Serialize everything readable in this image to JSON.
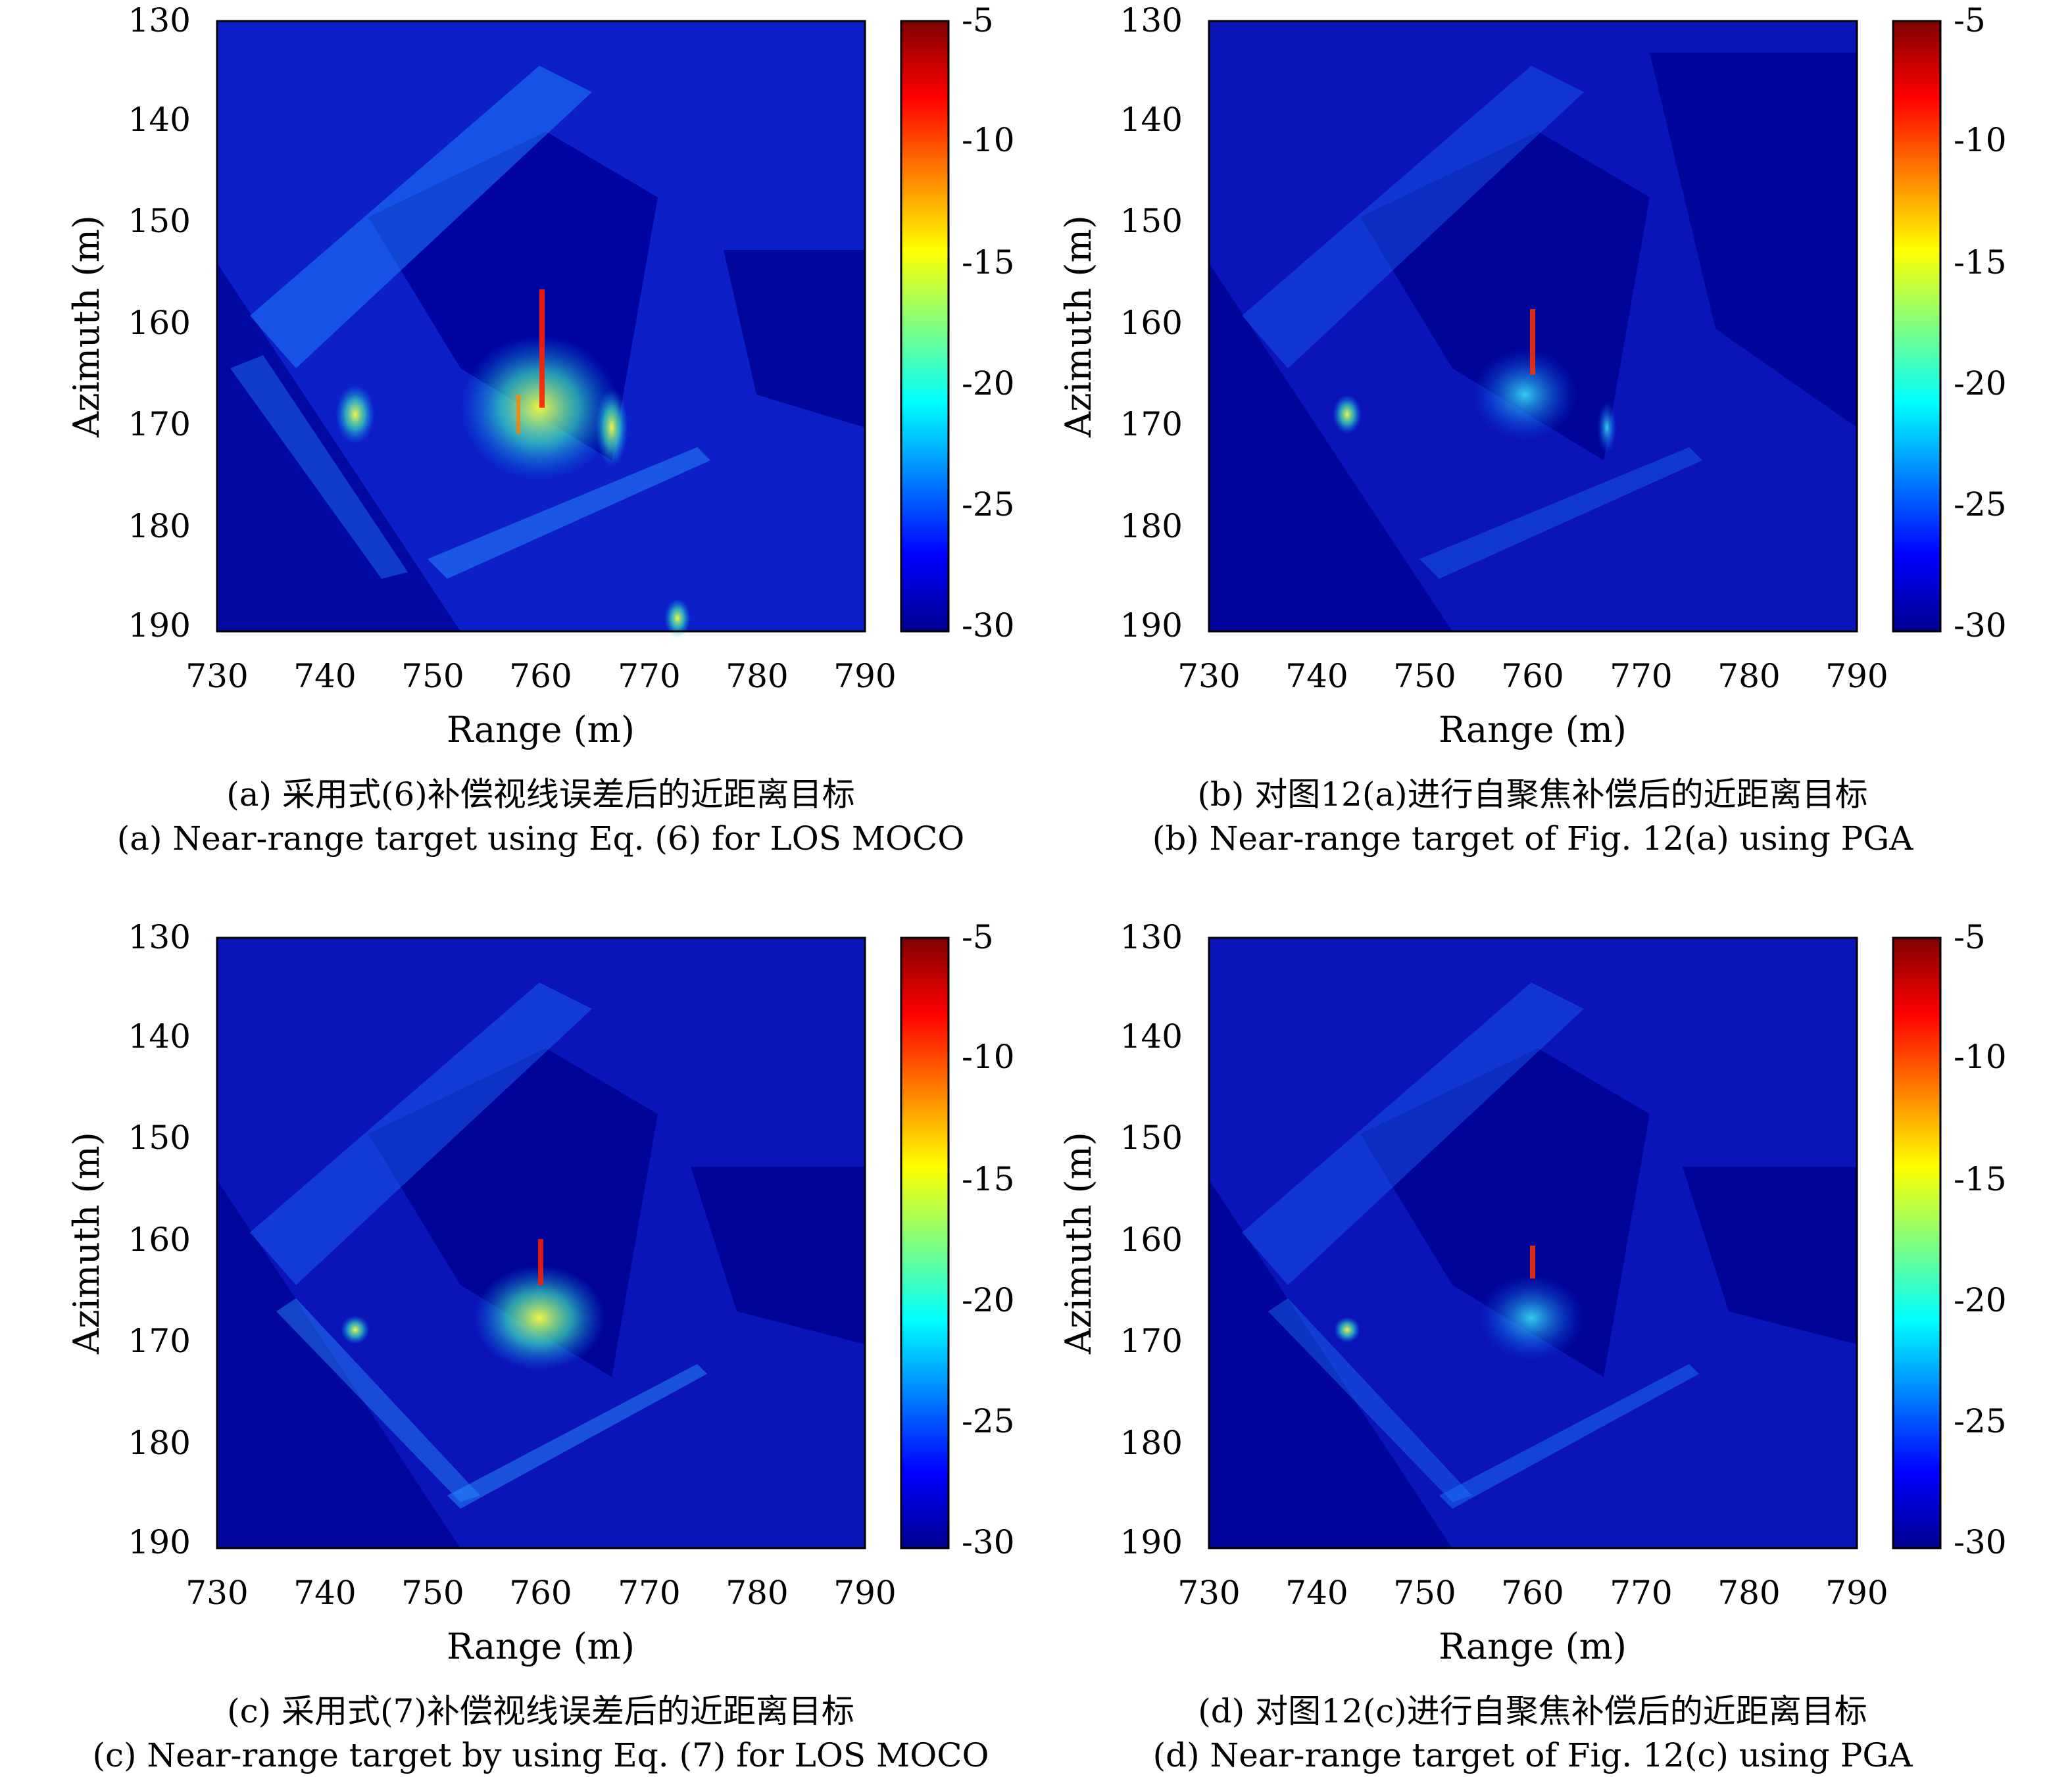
{
  "chart_data": [
    {
      "type": "heatmap",
      "xlabel": "Range (m)",
      "ylabel": "Azimuth (m)",
      "xlim": [
        730,
        790
      ],
      "ylim": [
        130,
        190
      ],
      "y_reversed": true,
      "xticks": [
        "730",
        "740",
        "750",
        "760",
        "770",
        "780",
        "790"
      ],
      "yticks": [
        "130",
        "140",
        "150",
        "160",
        "170",
        "180",
        "190"
      ],
      "colorbar": {
        "range": [
          -30,
          -5
        ],
        "ticks": [
          "-5",
          "-10",
          "-15",
          "-20",
          "-25",
          "-30"
        ],
        "colormap": "jet"
      },
      "caption_cn": "(a) 采用式(6)补偿视线误差后的近距离目标",
      "caption_en": "(a) Near-range target using Eq. (6) for LOS MOCO"
    },
    {
      "type": "heatmap",
      "xlabel": "Range (m)",
      "ylabel": "Azimuth (m)",
      "xlim": [
        730,
        790
      ],
      "ylim": [
        130,
        190
      ],
      "y_reversed": true,
      "xticks": [
        "730",
        "740",
        "750",
        "760",
        "770",
        "780",
        "790"
      ],
      "yticks": [
        "130",
        "140",
        "150",
        "160",
        "170",
        "180",
        "190"
      ],
      "colorbar": {
        "range": [
          -30,
          -5
        ],
        "ticks": [
          "-5",
          "-10",
          "-15",
          "-20",
          "-25",
          "-30"
        ],
        "colormap": "jet"
      },
      "caption_cn": "(b) 对图12(a)进行自聚焦补偿后的近距离目标",
      "caption_en": "(b) Near-range target of Fig. 12(a) using PGA"
    },
    {
      "type": "heatmap",
      "xlabel": "Range (m)",
      "ylabel": "Azimuth (m)",
      "xlim": [
        730,
        790
      ],
      "ylim": [
        130,
        190
      ],
      "y_reversed": true,
      "xticks": [
        "730",
        "740",
        "750",
        "760",
        "770",
        "780",
        "790"
      ],
      "yticks": [
        "130",
        "140",
        "150",
        "160",
        "170",
        "180",
        "190"
      ],
      "colorbar": {
        "range": [
          -30,
          -5
        ],
        "ticks": [
          "-5",
          "-10",
          "-15",
          "-20",
          "-25",
          "-30"
        ],
        "colormap": "jet"
      },
      "caption_cn": "(c) 采用式(7)补偿视线误差后的近距离目标",
      "caption_en": "(c) Near-range target by using Eq. (7) for LOS MOCO"
    },
    {
      "type": "heatmap",
      "xlabel": "Range (m)",
      "ylabel": "Azimuth (m)",
      "xlim": [
        730,
        790
      ],
      "ylim": [
        130,
        190
      ],
      "y_reversed": true,
      "xticks": [
        "730",
        "740",
        "750",
        "760",
        "770",
        "780",
        "790"
      ],
      "yticks": [
        "130",
        "140",
        "150",
        "160",
        "170",
        "180",
        "190"
      ],
      "colorbar": {
        "range": [
          -30,
          -5
        ],
        "ticks": [
          "-5",
          "-10",
          "-15",
          "-20",
          "-25",
          "-30"
        ],
        "colormap": "jet"
      },
      "caption_cn": "(d) 对图12(c)进行自聚焦补偿后的近距离目标",
      "caption_en": "(d) Near-range target of Fig. 12(c) using PGA"
    }
  ]
}
